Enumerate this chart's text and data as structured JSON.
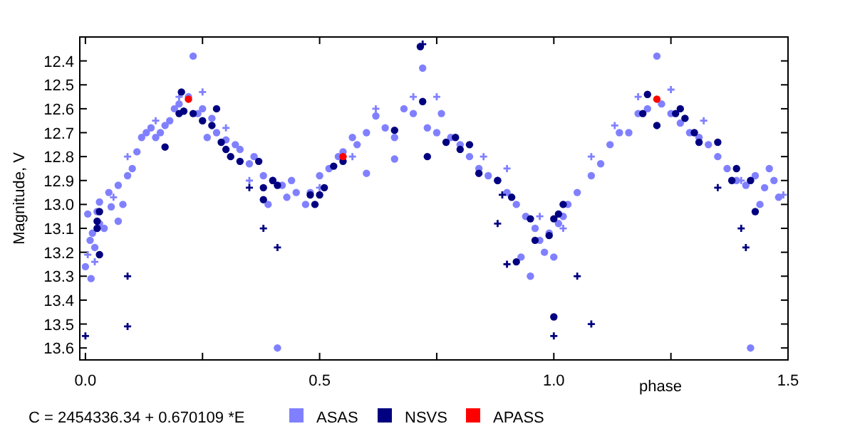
{
  "chart_data": {
    "type": "scatter",
    "xlabel": "phase",
    "ylabel": "Magnitude, V",
    "annotations": [
      "C = 2454336.34 + 0.670109 *E"
    ],
    "xlim": [
      -0.012,
      1.5
    ],
    "ylim": [
      13.65,
      12.3
    ],
    "xticks": [
      {
        "value": 0,
        "label": "0.0"
      },
      {
        "value": 0.25,
        "label": null
      },
      {
        "value": 0.5,
        "label": "0.5"
      },
      {
        "value": 0.75,
        "label": null
      },
      {
        "value": 1,
        "label": "1.0"
      },
      {
        "value": 1.25,
        "label": null
      },
      {
        "value": 1.5,
        "label": "1.5"
      }
    ],
    "yticks": [
      12.4,
      12.5,
      12.6,
      12.7,
      12.8,
      12.9,
      {
        "value": 13,
        "label": "13.0"
      },
      13.1,
      13.2,
      13.3,
      13.4,
      13.5,
      13.6
    ],
    "grid": false,
    "legend": "bottom",
    "series": [
      {
        "name": "ASAS",
        "color": "#8080ff",
        "marker": "circle",
        "x": [
          0.0,
          0.005,
          0.01,
          0.012,
          0.015,
          0.02,
          0.025,
          0.03,
          0.04,
          0.055,
          0.07,
          0.08,
          0.03,
          0.05,
          0.07,
          0.09,
          0.1,
          0.11,
          0.12,
          0.13,
          0.14,
          0.15,
          0.16,
          0.17,
          0.18,
          0.19,
          0.2,
          0.22,
          0.23,
          0.24,
          0.25,
          0.27,
          0.28,
          0.3,
          0.32,
          0.33,
          0.35,
          0.36,
          0.38,
          0.4,
          0.42,
          0.43,
          0.44,
          0.45,
          0.47,
          0.48,
          0.5,
          0.52,
          0.54,
          0.55,
          0.57,
          0.58,
          0.6,
          0.62,
          0.64,
          0.66,
          0.68,
          0.7,
          0.72,
          0.73,
          0.75,
          0.76,
          0.78,
          0.8,
          0.82,
          0.84,
          0.86,
          0.88,
          0.9,
          0.92,
          0.94,
          0.96,
          0.97,
          0.98,
          0.99,
          1.0,
          1.01,
          1.02,
          0.93,
          0.95,
          0.41,
          0.39,
          0.26,
          0.66,
          0.6,
          1.03,
          1.05,
          1.08,
          1.1,
          1.12,
          1.14,
          1.16,
          1.18,
          1.2,
          1.22,
          1.23,
          1.25,
          1.27,
          1.29,
          1.31,
          1.33,
          1.35,
          1.37,
          1.39,
          1.41,
          1.43,
          1.45,
          1.47,
          1.48,
          1.42,
          1.44,
          1.46
        ],
        "values": [
          13.26,
          13.04,
          13.15,
          13.31,
          13.12,
          13.18,
          13.03,
          13.08,
          13.1,
          13.01,
          13.07,
          13.0,
          12.99,
          12.95,
          12.92,
          12.88,
          12.85,
          12.78,
          12.72,
          12.7,
          12.68,
          12.72,
          12.7,
          12.67,
          12.65,
          12.6,
          12.58,
          12.55,
          12.38,
          12.62,
          12.6,
          12.64,
          12.7,
          12.73,
          12.75,
          12.77,
          12.83,
          12.8,
          12.88,
          12.9,
          12.92,
          12.97,
          12.9,
          12.95,
          13.0,
          12.95,
          12.88,
          12.85,
          12.8,
          12.78,
          12.72,
          12.75,
          12.7,
          12.63,
          12.68,
          12.72,
          12.6,
          12.62,
          12.43,
          12.68,
          12.7,
          12.62,
          12.72,
          12.75,
          12.8,
          12.85,
          12.88,
          12.9,
          12.95,
          13.0,
          13.05,
          13.1,
          13.15,
          13.2,
          13.12,
          13.22,
          13.08,
          13.05,
          13.22,
          13.3,
          13.6,
          13.0,
          12.72,
          12.81,
          12.87,
          13.0,
          12.95,
          12.88,
          12.83,
          12.75,
          12.7,
          12.7,
          12.62,
          12.6,
          12.38,
          12.58,
          12.62,
          12.66,
          12.7,
          12.72,
          12.75,
          12.8,
          12.85,
          12.9,
          12.92,
          12.88,
          12.93,
          12.9,
          12.97,
          13.6,
          13.0,
          12.85
        ]
      },
      {
        "color": "#8080ff",
        "marker": "cross",
        "x": [
          0.005,
          0.02,
          0.06,
          0.09,
          0.15,
          0.2,
          0.25,
          0.3,
          0.35,
          0.5,
          0.57,
          0.62,
          0.7,
          0.75,
          0.85,
          0.9,
          0.97,
          1.02,
          1.08,
          1.13,
          1.18,
          1.25,
          1.32,
          1.4,
          1.49
        ],
        "values": [
          13.21,
          13.24,
          12.97,
          12.8,
          12.65,
          12.55,
          12.53,
          12.68,
          12.9,
          12.93,
          12.8,
          12.6,
          12.55,
          12.55,
          12.8,
          12.85,
          13.05,
          13.1,
          12.8,
          12.67,
          12.55,
          12.52,
          12.65,
          12.9,
          12.96
        ]
      },
      {
        "name": "NSVS",
        "color": "#000080",
        "marker": "circle",
        "x": [
          0.025,
          0.025,
          0.03,
          0.03,
          0.17,
          0.2,
          0.205,
          0.21,
          0.23,
          0.25,
          0.27,
          0.28,
          0.29,
          0.3,
          0.31,
          0.33,
          0.37,
          0.38,
          0.38,
          0.4,
          0.41,
          0.48,
          0.49,
          0.5,
          0.51,
          0.53,
          0.55,
          0.66,
          0.72,
          0.73,
          0.77,
          0.79,
          0.8,
          0.82,
          0.84,
          0.88,
          0.91,
          0.95,
          0.96,
          0.99,
          1.0,
          1.01,
          1.02,
          1.0,
          0.92,
          1.19,
          1.2,
          1.22,
          1.26,
          1.27,
          1.28,
          1.3,
          1.31,
          1.35,
          1.39,
          1.38,
          1.42,
          1.43,
          0.715
        ],
        "values": [
          13.07,
          13.1,
          13.03,
          13.21,
          12.76,
          12.62,
          12.53,
          12.61,
          12.62,
          12.65,
          12.67,
          12.6,
          12.74,
          12.77,
          12.8,
          12.82,
          12.82,
          12.93,
          12.98,
          12.9,
          12.92,
          12.96,
          13.0,
          12.96,
          12.93,
          12.84,
          12.82,
          12.69,
          12.57,
          12.8,
          12.74,
          12.72,
          12.77,
          12.75,
          12.87,
          12.9,
          12.97,
          13.06,
          13.15,
          13.13,
          13.06,
          13.04,
          13.0,
          13.47,
          13.24,
          12.62,
          12.54,
          12.67,
          12.62,
          12.6,
          12.64,
          12.7,
          12.74,
          12.74,
          12.85,
          12.9,
          12.9,
          13.03,
          12.34
        ]
      },
      {
        "color": "#000080",
        "marker": "cross",
        "x": [
          0.0,
          0.09,
          0.09,
          0.35,
          0.38,
          0.41,
          0.72,
          0.88,
          0.9,
          1.0,
          1.08,
          1.05,
          1.35,
          1.4,
          1.41,
          0.89
        ],
        "values": [
          13.55,
          13.3,
          13.51,
          12.93,
          13.1,
          13.18,
          12.33,
          13.08,
          13.25,
          13.55,
          13.5,
          13.3,
          12.93,
          13.1,
          13.18,
          12.96
        ]
      },
      {
        "name": "APASS",
        "color": "#ff0000",
        "marker": "circle",
        "x": [
          0.22,
          0.55,
          1.22
        ],
        "values": [
          12.56,
          12.8,
          12.56
        ]
      }
    ]
  }
}
